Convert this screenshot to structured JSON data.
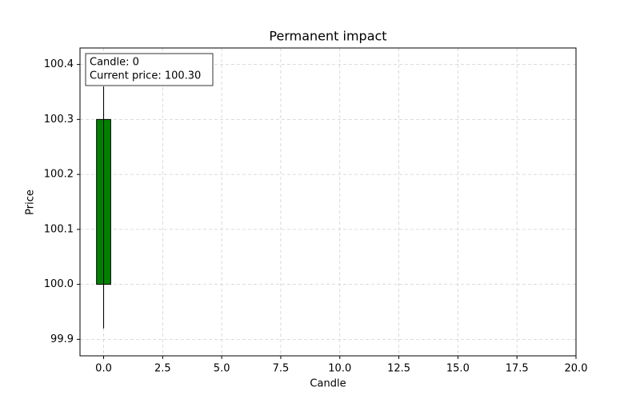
{
  "chart_data": {
    "type": "candlestick",
    "title": "Permanent impact",
    "x_label": "Candle",
    "y_label": "Price",
    "x": [
      0
    ],
    "open": [
      100.0
    ],
    "high": [
      100.36
    ],
    "low": [
      99.92
    ],
    "close": [
      100.3
    ],
    "up_color": "#008000",
    "edge_color": "#000000",
    "xlim": [
      -1,
      20
    ],
    "xticks": [
      {
        "value": 0,
        "label": "0.0"
      },
      2.5,
      {
        "value": 5,
        "label": "5.0"
      },
      7.5,
      {
        "value": 10,
        "label": "10.0"
      },
      12.5,
      {
        "value": 15,
        "label": "15.0"
      },
      17.5,
      {
        "value": 20,
        "label": "20.0"
      }
    ],
    "ylim": [
      99.87,
      100.43
    ],
    "yticks": [
      99.9,
      {
        "value": 100.0,
        "label": "100.0"
      },
      100.1,
      100.2,
      100.3,
      100.4
    ],
    "grid": true,
    "annotation": [
      "Candle: 0",
      "Current price: 100.30"
    ]
  }
}
